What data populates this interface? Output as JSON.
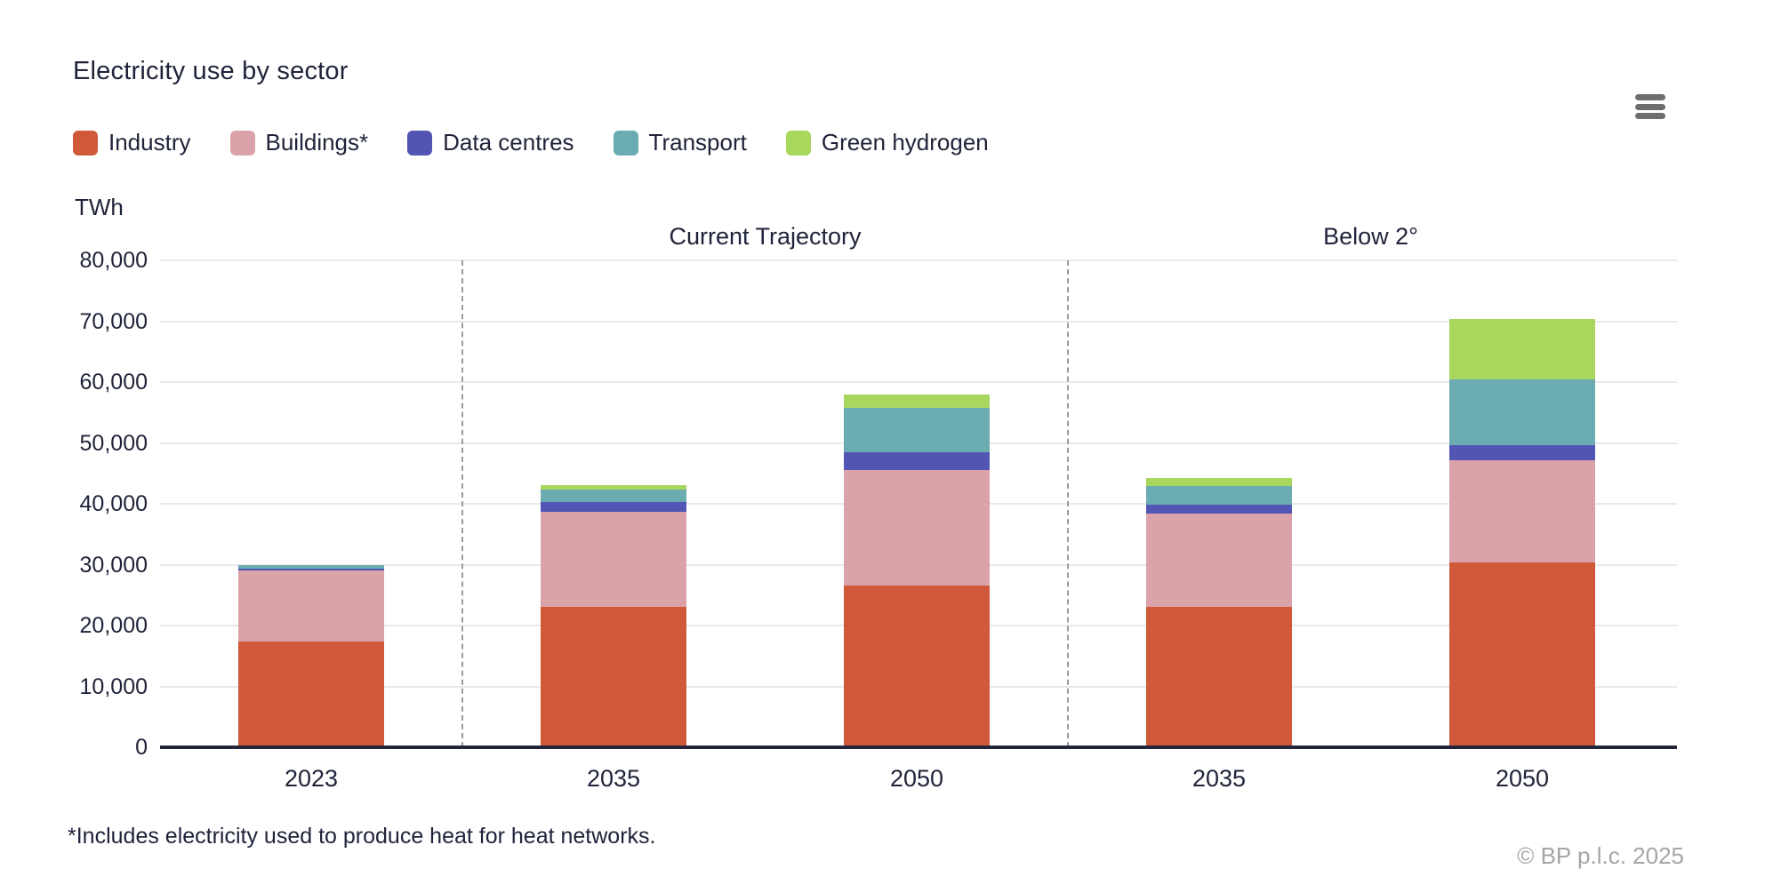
{
  "header": {
    "title": "Electricity use by sector",
    "menu_icon": "hamburger-menu"
  },
  "chart_data": {
    "type": "bar",
    "stacked": true,
    "title": "Electricity use by sector",
    "unit_label": "TWh",
    "ylabel": "TWh",
    "ylim": [
      0,
      80000
    ],
    "ytick_step": 10000,
    "grid": "horizontal",
    "legend_position": "top-left",
    "categories": [
      "2023",
      "2035",
      "2050",
      "2035",
      "2050"
    ],
    "sections": [
      {
        "label": "Current Trajectory",
        "from_index": 1,
        "to_index": 2
      },
      {
        "label": "Below 2°",
        "from_index": 3,
        "to_index": 4
      }
    ],
    "series": [
      {
        "name": "Industry",
        "color": "#d0593a",
        "values": [
          17300,
          23000,
          26500,
          23000,
          30400
        ]
      },
      {
        "name": "Buildings*",
        "color": "#dba3a9",
        "values": [
          11700,
          15700,
          19000,
          15400,
          16800
        ]
      },
      {
        "name": "Data centres",
        "color": "#5355b4",
        "values": [
          400,
          1600,
          3000,
          1500,
          2500
        ]
      },
      {
        "name": "Transport",
        "color": "#6aacb2",
        "values": [
          600,
          2100,
          7200,
          3000,
          10700
        ]
      },
      {
        "name": "Green hydrogen",
        "color": "#a8d75d",
        "values": [
          0,
          700,
          2300,
          1400,
          10000
        ]
      }
    ]
  },
  "theme": {
    "text_color": "#20243a",
    "grid_color": "#e9e9e9",
    "axis_color": "#23263a",
    "separator_color": "#9b9b9b",
    "menu_icon_color": "#6e6e6e",
    "muted_text_color": "#a5a5a5",
    "background": "#ffffff"
  },
  "footnote": "*Includes electricity used to produce heat for heat networks.",
  "copyright": "© BP p.l.c. 2025"
}
